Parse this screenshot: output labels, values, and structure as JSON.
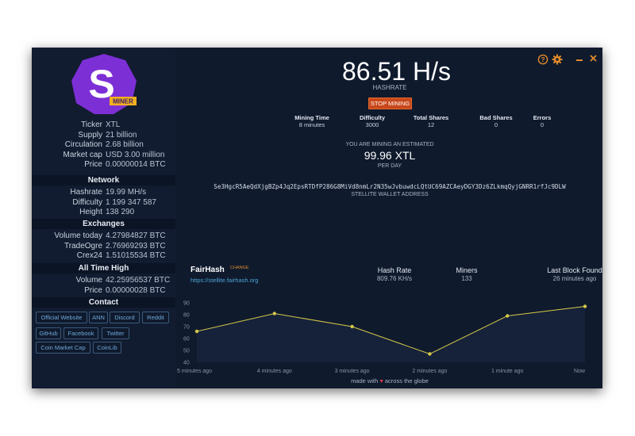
{
  "hashrate": {
    "value": "86.51 H/s",
    "label": "HASHRATE"
  },
  "stop_button": "STOP MINING",
  "stats": [
    {
      "label": "Mining Time",
      "value": "8 minutes"
    },
    {
      "label": "Difficulty",
      "value": "3000"
    },
    {
      "label": "Total Shares",
      "value": "12"
    },
    {
      "label": "Bad Shares",
      "value": "0"
    },
    {
      "label": "Errors",
      "value": "0"
    }
  ],
  "estimate": {
    "pre": "YOU ARE MINING AN ESTIMATED",
    "value": "99.96 XTL",
    "post": "PER DAY"
  },
  "wallet": {
    "address": "Se3HgcR5AeQdXjgBZp4Jq2EpsRTDfP286G8MiVd8nmLr2N35wJvbuwdcLQtUC69AZCAeyDGY3Dz6ZLkmqQyjGNRR1rfJc9DLW",
    "label": "STELLITE WALLET ADDRESS"
  },
  "logo": {
    "letter": "S",
    "badge": "MINER",
    "color": "#7d2fd6"
  },
  "sidebar": {
    "info": [
      {
        "k": "Ticker",
        "v": "XTL"
      },
      {
        "k": "Supply",
        "v": "21 billion"
      },
      {
        "k": "Circulation",
        "v": "2.68 billion"
      },
      {
        "k": "Market cap",
        "v": "USD 3.00 million"
      },
      {
        "k": "Price",
        "v": "0.00000014 BTC"
      }
    ],
    "network_title": "Network",
    "network": [
      {
        "k": "Hashrate",
        "v": "19.99 MH/s"
      },
      {
        "k": "Difficulty",
        "v": "1 199 347 587"
      },
      {
        "k": "Height",
        "v": "138 290"
      }
    ],
    "exchanges_title": "Exchanges",
    "exchanges": [
      {
        "k": "Volume today",
        "v": "4.27984827 BTC"
      },
      {
        "k": "TradeOgre",
        "v": "2.76969293 BTC"
      },
      {
        "k": "Crex24",
        "v": "1.51015534 BTC"
      }
    ],
    "ath_title": "All Time High",
    "ath": [
      {
        "k": "Volume",
        "v": "42.25956537 BTC"
      },
      {
        "k": "Price",
        "v": "0.00000028 BTC"
      }
    ],
    "contact_title": "Contact",
    "contacts": [
      "Official Website",
      "ANN",
      "Discord",
      "Reddit",
      "GitHub",
      "Facebook",
      "Twitter",
      "Coin Market Cap",
      "CoinLib"
    ]
  },
  "pool": {
    "name": "FairHash",
    "tag": "CHANGE",
    "url": "https://stellite.fairhash.org",
    "hashrate_label": "Hash Rate",
    "hashrate_value": "809.76 KH/s",
    "miners_label": "Miners",
    "miners_value": "133",
    "block_label": "Last Block Found",
    "block_value": "26 minutes ago"
  },
  "footer": {
    "pre": "made with",
    "post": "across the globe",
    "heart_color": "#e0344a"
  },
  "window_controls": {
    "help_icon": "help-icon",
    "settings_icon": "gear-icon",
    "minimize_icon": "minimize-icon",
    "close_icon": "close-icon",
    "accent": "#e08a2a"
  },
  "chart_data": {
    "type": "area",
    "x": [
      "5 minutes ago",
      "4 minutes ago",
      "3 minutes ago",
      "2 minutes ago",
      "1 minute ago",
      "Now"
    ],
    "series": [
      {
        "values": [
          66,
          81,
          70,
          47,
          79,
          87
        ]
      }
    ],
    "yticks": [
      90,
      80,
      70,
      60,
      50,
      40
    ],
    "ylim": [
      40,
      90
    ],
    "line_color": "#d4c94a",
    "fill_color": "#16223a"
  }
}
